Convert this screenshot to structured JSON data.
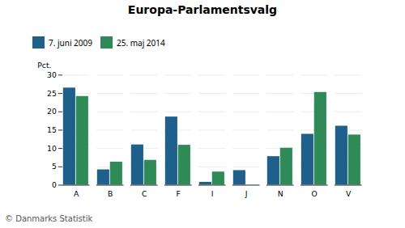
{
  "chart_data": {
    "type": "bar",
    "title": "Europa-Parlamentsvalg",
    "categories": [
      "A",
      "B",
      "C",
      "F",
      "I",
      "J",
      "N",
      "O",
      "V"
    ],
    "series": [
      {
        "name": "7. juni 2009",
        "color": "#1f5f8b",
        "values": [
          26.5,
          4.2,
          11.0,
          18.6,
          0.8,
          4.0,
          7.8,
          13.9,
          16.1
        ]
      },
      {
        "name": "25. maj 2014",
        "color": "#2e8b57",
        "values": [
          24.2,
          6.3,
          6.8,
          10.9,
          3.6,
          0.0,
          10.1,
          25.3,
          13.7
        ]
      }
    ],
    "y_label": "Pct.",
    "caption": "© Danmarks Statistik",
    "ylim": [
      0,
      30
    ],
    "yticks": [
      0,
      5,
      10,
      15,
      20,
      25,
      30
    ],
    "grid": true,
    "legend": "top"
  }
}
